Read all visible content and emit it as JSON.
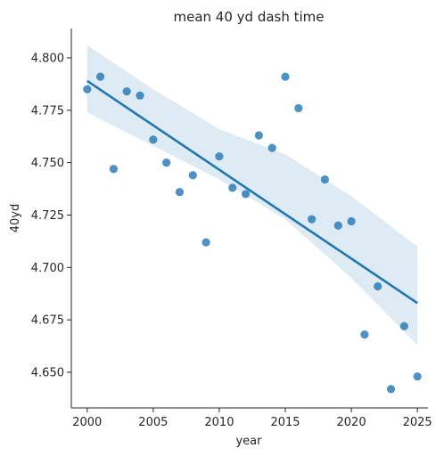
{
  "chart_data": {
    "type": "scatter",
    "title": "mean 40 yd dash time",
    "xlabel": "year",
    "ylabel": "40yd",
    "xlim": [
      1998.8,
      2025.8
    ],
    "ylim": [
      4.633,
      4.814
    ],
    "xticks": [
      2000,
      2005,
      2010,
      2015,
      2020,
      2025
    ],
    "yticks": [
      4.65,
      4.675,
      4.7,
      4.725,
      4.75,
      4.775,
      4.8
    ],
    "ytick_labels": [
      "4.650",
      "4.675",
      "4.700",
      "4.725",
      "4.750",
      "4.775",
      "4.800"
    ],
    "grid": false,
    "legend": "none",
    "colors": {
      "points": "#1f77b4",
      "regression": "#1f77b4",
      "ci_band": "#1f77b4"
    },
    "points": [
      {
        "x": 2000,
        "y": 4.785
      },
      {
        "x": 2001,
        "y": 4.791
      },
      {
        "x": 2002,
        "y": 4.747
      },
      {
        "x": 2003,
        "y": 4.784
      },
      {
        "x": 2004,
        "y": 4.782
      },
      {
        "x": 2005,
        "y": 4.761
      },
      {
        "x": 2006,
        "y": 4.75
      },
      {
        "x": 2007,
        "y": 4.736
      },
      {
        "x": 2008,
        "y": 4.744
      },
      {
        "x": 2009,
        "y": 4.712
      },
      {
        "x": 2010,
        "y": 4.753
      },
      {
        "x": 2011,
        "y": 4.738
      },
      {
        "x": 2012,
        "y": 4.735
      },
      {
        "x": 2013,
        "y": 4.763
      },
      {
        "x": 2014,
        "y": 4.757
      },
      {
        "x": 2015,
        "y": 4.791
      },
      {
        "x": 2016,
        "y": 4.776
      },
      {
        "x": 2017,
        "y": 4.723
      },
      {
        "x": 2018,
        "y": 4.742
      },
      {
        "x": 2019,
        "y": 4.72
      },
      {
        "x": 2020,
        "y": 4.722
      },
      {
        "x": 2021,
        "y": 4.668
      },
      {
        "x": 2022,
        "y": 4.691
      },
      {
        "x": 2023,
        "y": 4.642
      },
      {
        "x": 2024,
        "y": 4.672
      },
      {
        "x": 2025,
        "y": 4.648
      }
    ],
    "regression": {
      "x": [
        2000,
        2025
      ],
      "y": [
        4.789,
        4.683
      ]
    },
    "ci_band": {
      "x": [
        2000,
        2005,
        2010,
        2015,
        2020,
        2025
      ],
      "upper": [
        4.806,
        4.785,
        4.766,
        4.754,
        4.734,
        4.71
      ],
      "lower": [
        4.774,
        4.758,
        4.742,
        4.723,
        4.695,
        4.663
      ]
    }
  }
}
